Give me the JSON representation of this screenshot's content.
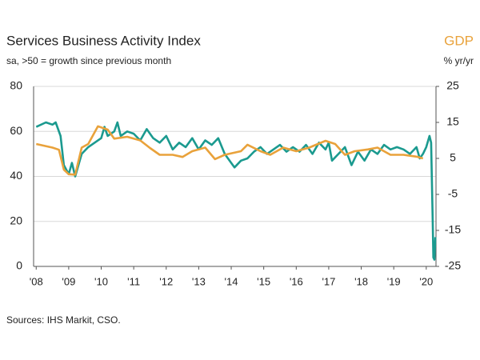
{
  "chart_data": {
    "type": "line",
    "title": "Services Business Activity Index",
    "subtitle": "sa, >50 = growth since previous month",
    "y2_title": "GDP",
    "y2_unit": "% yr/yr",
    "source": "Sources: IHS Markit, CSO.",
    "xlim": [
      2007.92,
      2020.3
    ],
    "xticks": [
      {
        "value": 2008,
        "label": "'08"
      },
      {
        "value": 2009,
        "label": "'09"
      },
      {
        "value": 2010,
        "label": "'10"
      },
      {
        "value": 2011,
        "label": "'11"
      },
      {
        "value": 2012,
        "label": "'12"
      },
      {
        "value": 2013,
        "label": "'13"
      },
      {
        "value": 2014,
        "label": "'14"
      },
      {
        "value": 2015,
        "label": "'15"
      },
      {
        "value": 2016,
        "label": "'16"
      },
      {
        "value": 2017,
        "label": "'17"
      },
      {
        "value": 2018,
        "label": "'18"
      },
      {
        "value": 2019,
        "label": "'19"
      },
      {
        "value": 2020,
        "label": "'20"
      }
    ],
    "ylim": [
      0,
      80
    ],
    "yticks": [
      0,
      20,
      40,
      60,
      80
    ],
    "y2lim": [
      -25,
      25
    ],
    "y2ticks": [
      -25,
      -15,
      -5,
      5,
      15,
      25
    ],
    "grid": true,
    "series": [
      {
        "name": "Services Business Activity Index",
        "color": "#1b9a8f",
        "x": [
          2008.0,
          2008.3,
          2008.5,
          2008.6,
          2008.75,
          2008.85,
          2009.0,
          2009.1,
          2009.2,
          2009.4,
          2009.6,
          2009.8,
          2010.0,
          2010.1,
          2010.2,
          2010.4,
          2010.5,
          2010.6,
          2010.8,
          2011.0,
          2011.2,
          2011.4,
          2011.6,
          2011.8,
          2012.0,
          2012.2,
          2012.4,
          2012.6,
          2012.8,
          2013.0,
          2013.2,
          2013.4,
          2013.6,
          2013.8,
          2014.0,
          2014.1,
          2014.3,
          2014.5,
          2014.7,
          2014.9,
          2015.1,
          2015.3,
          2015.5,
          2015.7,
          2015.9,
          2016.1,
          2016.3,
          2016.5,
          2016.7,
          2016.9,
          2017.0,
          2017.1,
          2017.3,
          2017.5,
          2017.7,
          2017.9,
          2018.1,
          2018.3,
          2018.5,
          2018.7,
          2018.9,
          2019.1,
          2019.3,
          2019.5,
          2019.7,
          2019.8,
          2019.9,
          2020.0,
          2020.1,
          2020.15,
          2020.2,
          2020.22,
          2020.25,
          2020.28
        ],
        "values": [
          62,
          64,
          63,
          64,
          58,
          45,
          41,
          46,
          40,
          50,
          53,
          55,
          57,
          62,
          58,
          60,
          64,
          58,
          60,
          59,
          56,
          61,
          57,
          55,
          58,
          52,
          55,
          53,
          57,
          52,
          56,
          54,
          57,
          50,
          46,
          44,
          47,
          48,
          51,
          53,
          50,
          52,
          54,
          51,
          53,
          51,
          54,
          50,
          55,
          52,
          55,
          47,
          50,
          53,
          45,
          51,
          47,
          52,
          50,
          54,
          52,
          53,
          52,
          50,
          53,
          48,
          50,
          53,
          58,
          55,
          20,
          4,
          3,
          13
        ]
      },
      {
        "name": "GDP",
        "color": "#e9a23b",
        "axis": "y2",
        "x": [
          2008.0,
          2008.5,
          2008.7,
          2008.85,
          2009.0,
          2009.2,
          2009.4,
          2009.6,
          2009.9,
          2010.2,
          2010.4,
          2010.8,
          2011.2,
          2011.5,
          2011.8,
          2012.2,
          2012.5,
          2012.8,
          2013.2,
          2013.5,
          2013.8,
          2014.3,
          2014.5,
          2014.9,
          2015.2,
          2015.6,
          2016.0,
          2016.4,
          2016.9,
          2017.2,
          2017.5,
          2017.8,
          2018.2,
          2018.5,
          2018.9,
          2019.3,
          2019.7,
          2019.9
        ],
        "values": [
          9,
          8,
          7.4,
          1.9,
          0.6,
          0.5,
          8,
          9,
          13.9,
          13,
          10.5,
          11,
          10,
          7.9,
          6,
          6,
          5.4,
          7,
          8,
          4.8,
          6,
          7,
          8.8,
          7,
          6,
          8,
          7,
          8,
          9.9,
          9,
          6,
          7,
          7.5,
          8,
          6,
          6,
          5.5,
          5
        ]
      }
    ]
  }
}
